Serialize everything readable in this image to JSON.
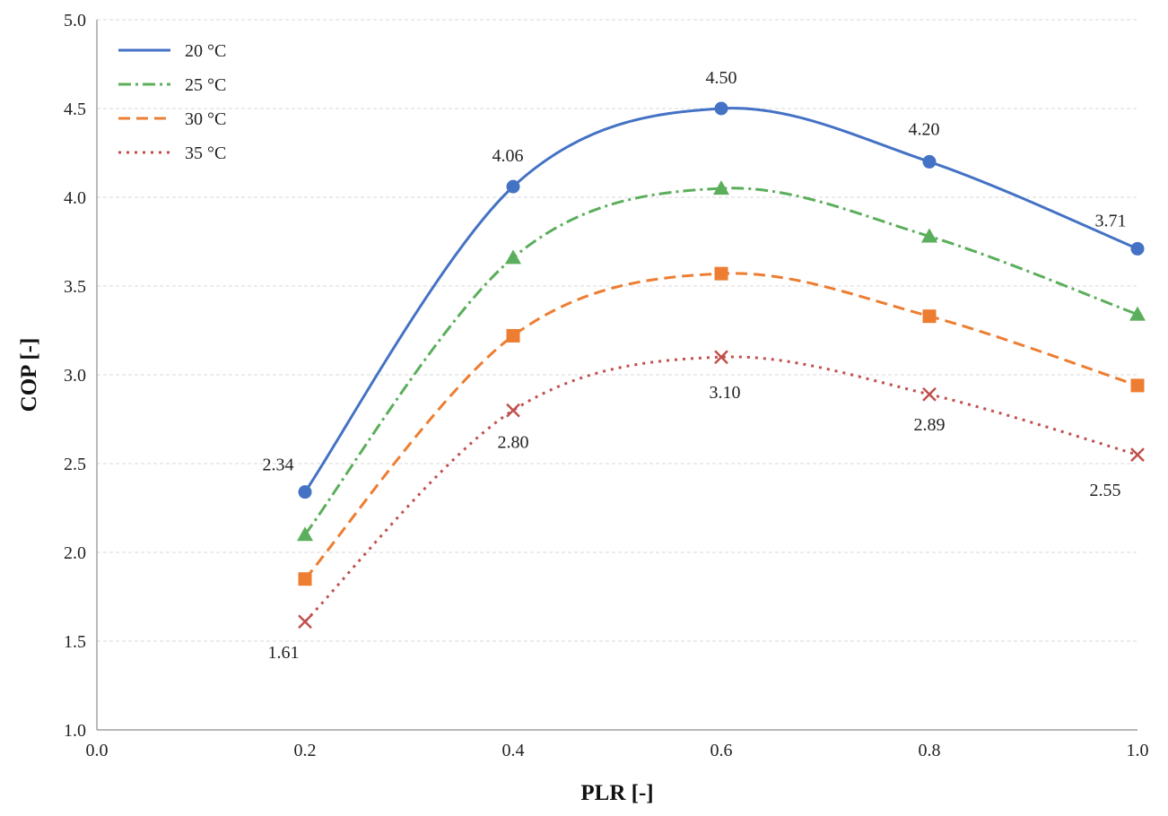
{
  "chart_data": {
    "type": "line",
    "xlabel": "PLR [-]",
    "ylabel": "COP [-]",
    "xlim": [
      0.0,
      1.0
    ],
    "ylim": [
      1.0,
      5.0
    ],
    "x_ticks": [
      "0.0",
      "0.2",
      "0.4",
      "0.6",
      "0.8",
      "1.0"
    ],
    "y_ticks": [
      "1.0",
      "1.5",
      "2.0",
      "2.5",
      "3.0",
      "3.5",
      "4.0",
      "4.5",
      "5.0"
    ],
    "grid": "horizontal dashed",
    "legend_position": "top-left",
    "x": [
      0.2,
      0.4,
      0.6,
      0.8,
      1.0
    ],
    "series": [
      {
        "name": "20 °C",
        "values": [
          2.34,
          4.06,
          4.5,
          4.2,
          3.71
        ],
        "color": "#4472C4",
        "line_style": "solid",
        "marker": "circle",
        "labels": [
          "2.34",
          "4.06",
          "4.50",
          "4.20",
          "3.71"
        ]
      },
      {
        "name": "25 °C",
        "values": [
          2.1,
          3.66,
          4.05,
          3.78,
          3.34
        ],
        "color": "#5BAE5B",
        "line_style": "dash-dot",
        "marker": "triangle"
      },
      {
        "name": "30 °C",
        "values": [
          1.85,
          3.22,
          3.57,
          3.33,
          2.94
        ],
        "color": "#ED7D31",
        "line_style": "dashed",
        "marker": "square"
      },
      {
        "name": "35 °C",
        "values": [
          1.61,
          2.8,
          3.1,
          2.89,
          2.55
        ],
        "color": "#C0504D",
        "line_style": "dotted",
        "marker": "x",
        "labels": [
          "1.61",
          "2.80",
          "3.10",
          "2.89",
          "2.55"
        ]
      }
    ]
  }
}
